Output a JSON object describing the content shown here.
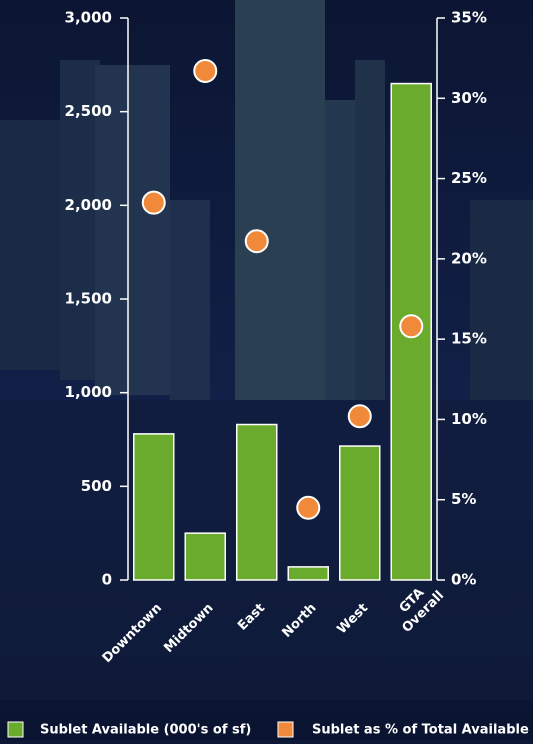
{
  "chart_data": {
    "type": "bar_scatter",
    "categories": [
      "Downtown",
      "Midtown",
      "East",
      "North",
      "West",
      "GTA Overall"
    ],
    "series": [
      {
        "name": "Sublet Available (000's of sf)",
        "color": "#6aab2e",
        "type": "bar",
        "axis": "y",
        "values": [
          780,
          250,
          830,
          70,
          715,
          2650
        ]
      },
      {
        "name": "Sublet as % of Total Available",
        "color": "#f08a3a",
        "type": "scatter",
        "axis": "y2",
        "values": [
          23.5,
          31.7,
          21.1,
          4.5,
          10.2,
          15.8
        ]
      }
    ],
    "ylim": [
      0,
      3000
    ],
    "yticks": [
      0,
      500,
      {
        "value": 1000,
        "label": "1,000"
      },
      {
        "value": 1500,
        "label": "1,500"
      },
      {
        "value": 2000,
        "label": "2,000"
      },
      {
        "value": 2500,
        "label": "2,500"
      },
      {
        "value": 3000,
        "label": "3,000"
      }
    ],
    "y2lim": [
      0,
      35
    ],
    "y2ticks": [
      {
        "value": 0,
        "label": "0%"
      },
      {
        "value": 5,
        "label": "5%"
      },
      {
        "value": 10,
        "label": "10%"
      },
      {
        "value": 15,
        "label": "15%"
      },
      {
        "value": 20,
        "label": "20%"
      },
      {
        "value": 25,
        "label": "25%"
      },
      {
        "value": 30,
        "label": "30%"
      },
      {
        "value": 35,
        "label": "35%"
      }
    ],
    "legend": "bottom"
  }
}
